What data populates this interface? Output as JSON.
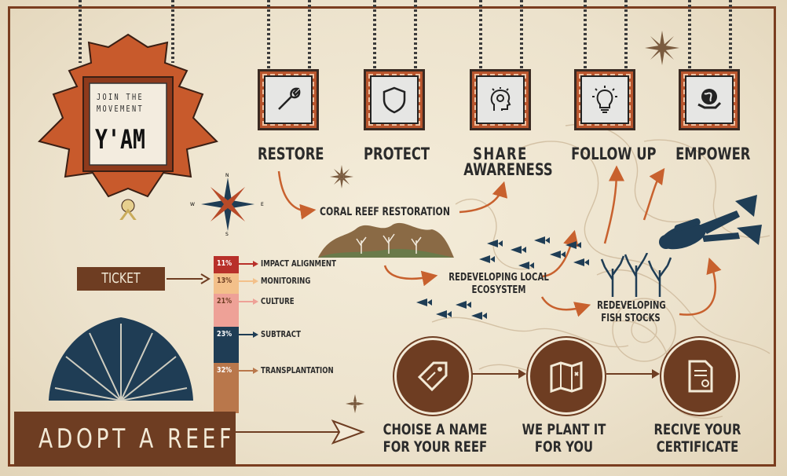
{
  "sign": {
    "line1": "JOIN THE",
    "line2": "MOVEMENT",
    "brand": "Y'AM"
  },
  "steps": [
    {
      "label": "RESTORE",
      "icon": "wrench-icon"
    },
    {
      "label": "PROTECT",
      "icon": "shield-icon"
    },
    {
      "label": "SHARE AWARENESS",
      "line1": "SHARE",
      "line2": "AWARENESS",
      "icon": "head-idea-icon"
    },
    {
      "label": "FOLLOW UP",
      "icon": "lightbulb-icon"
    },
    {
      "label": "EMPOWER",
      "icon": "globe-hand-icon"
    }
  ],
  "flow": {
    "coral_restoration": "CORAL REEF RESTORATION",
    "local_ecosystem_1": "REDEVELOPING LOCAL",
    "local_ecosystem_2": "ECOSYSTEM",
    "fish_stocks_1": "REDEVELOPING",
    "fish_stocks_2": "FISH STOCKS"
  },
  "ticket": "TICKET",
  "ticket_breakdown": {
    "items": [
      {
        "pct": "11%",
        "label": "IMPACT ALIGNMENT",
        "color": "#b8302a"
      },
      {
        "pct": "13%",
        "label": "MONITORING",
        "color": "#f3c08a"
      },
      {
        "pct": "21%",
        "label": "CULTURE",
        "color": "#eea197"
      },
      {
        "pct": "23%",
        "label": "SUBTRACT",
        "color": "#1f3d55"
      },
      {
        "pct": "32%",
        "label": "TRANSPLANTATION",
        "color": "#b9774b"
      }
    ]
  },
  "adopt": {
    "title": "ADOPT A REEF",
    "steps": [
      {
        "line1": "CHOISE A NAME",
        "line2": "FOR YOUR REEF",
        "icon": "tag-icon"
      },
      {
        "line1": "WE PLANT IT",
        "line2": "FOR YOU",
        "icon": "map-icon"
      },
      {
        "line1": "RECIVE YOUR",
        "line2": "CERTIFICATE",
        "icon": "certificate-icon"
      }
    ]
  },
  "compass": {
    "n": "N",
    "e": "E",
    "s": "S",
    "w": "W"
  },
  "colors": {
    "accent": "#c8612e",
    "brown": "#6e3d22",
    "navy": "#1f3d55",
    "paper": "#efe6d3"
  }
}
